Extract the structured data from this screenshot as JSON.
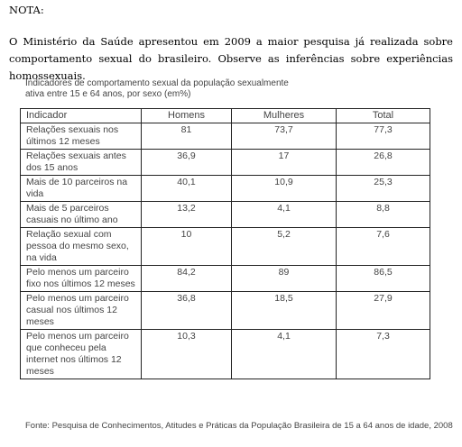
{
  "nota": {
    "title": "NOTA:",
    "text": "O Ministério da Saúde apresentou em 2009 a maior pesquisa já realizada sobre comportamento sexual do brasileiro. Observe as inferências sobre experiências homossexuais."
  },
  "table": {
    "caption": "Indicadores de comportamento sexual da população sexualmente ativa entre 15 e 64 anos, por sexo (em%)",
    "headers": [
      "Indicador",
      "Homens",
      "Mulheres",
      "Total"
    ],
    "rows": [
      {
        "label": "Relações sexuais nos últimos 12 meses",
        "homens": "81",
        "mulheres": "73,7",
        "total": "77,3"
      },
      {
        "label": "Relações sexuais antes dos 15 anos",
        "homens": "36,9",
        "mulheres": "17",
        "total": "26,8"
      },
      {
        "label": "Mais de 10 parceiros na vida",
        "homens": "40,1",
        "mulheres": "10,9",
        "total": "25,3"
      },
      {
        "label": "Mais de 5 parceiros casuais no último ano",
        "homens": "13,2",
        "mulheres": "4,1",
        "total": "8,8"
      },
      {
        "label": "Relação sexual com pessoa do mesmo sexo, na vida",
        "homens": "10",
        "mulheres": "5,2",
        "total": "7,6"
      },
      {
        "label": "Pelo menos um parceiro fixo nos últimos 12 meses",
        "homens": "84,2",
        "mulheres": "89",
        "total": "86,5"
      },
      {
        "label": "Pelo menos um parceiro casual nos últimos 12 meses",
        "homens": "36,8",
        "mulheres": "18,5",
        "total": "27,9"
      },
      {
        "label": "Pelo menos um parceiro que conheceu pela internet nos últimos 12 meses",
        "homens": "10,3",
        "mulheres": "4,1",
        "total": "7,3"
      }
    ],
    "source": "Fonte: Pesquisa de Conhecimentos, Atitudes e Práticas da População Brasileira de 15 a 64 anos de idade, 2008"
  }
}
